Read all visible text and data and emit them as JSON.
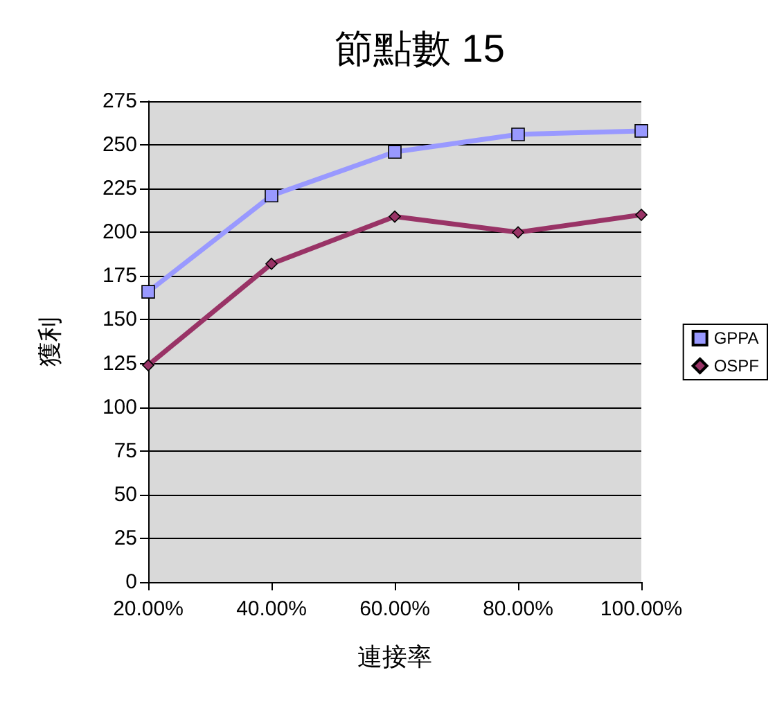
{
  "chart_data": {
    "type": "line",
    "title": "節點數 15",
    "xlabel": "連接率",
    "ylabel": "獲利",
    "categories": [
      "20.00%",
      "40.00%",
      "60.00%",
      "80.00%",
      "100.00%"
    ],
    "series": [
      {
        "name": "GPPA",
        "color": "#9999ff",
        "marker": "square",
        "values": [
          166,
          221,
          246,
          256,
          258
        ]
      },
      {
        "name": "OSPF",
        "color": "#993366",
        "marker": "diamond",
        "values": [
          124,
          182,
          209,
          200,
          210
        ]
      }
    ],
    "ylim": [
      0,
      275
    ],
    "yticks": [
      0,
      25,
      50,
      75,
      100,
      125,
      150,
      175,
      200,
      225,
      250,
      275
    ],
    "grid": "y",
    "legend": "right"
  }
}
